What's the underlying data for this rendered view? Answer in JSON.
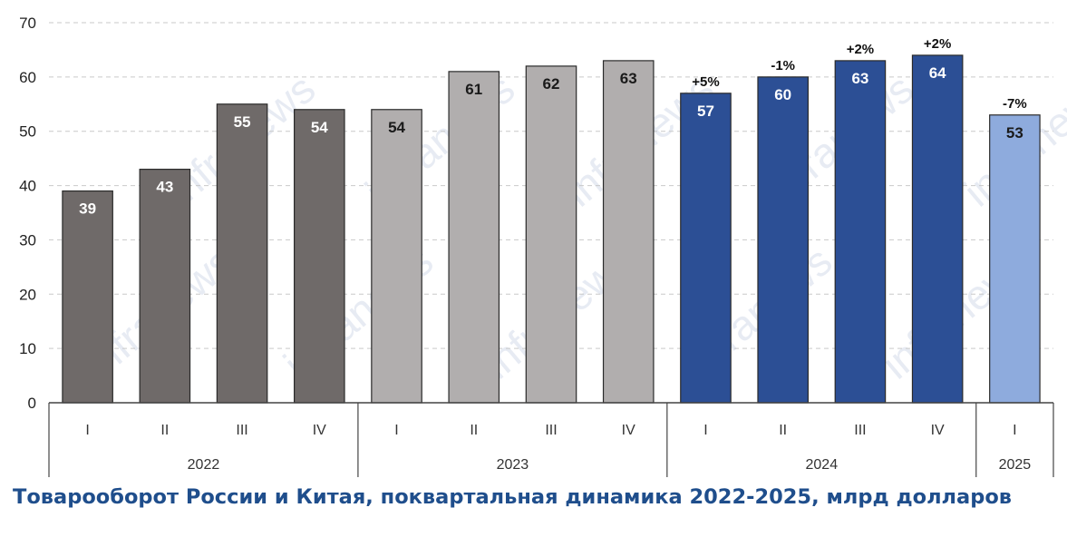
{
  "caption": "Товарооборот России и Китая, поквартальная динамика 2022-2025, млрд долларов",
  "watermark": "infranews",
  "chart_data": {
    "type": "bar",
    "title": "Товарооборот России и Китая, поквартальная динамика 2022-2025, млрд долларов",
    "ylim": [
      0,
      70
    ],
    "yticks": [
      0,
      10,
      20,
      30,
      40,
      50,
      60,
      70
    ],
    "grid": true,
    "groups": [
      {
        "label": "2022",
        "color": "#6f6a69",
        "label_color": "#ffffff",
        "bars": [
          {
            "quarter": "I",
            "value": 39,
            "label": "39",
            "change": ""
          },
          {
            "quarter": "II",
            "value": 43,
            "label": "43",
            "change": ""
          },
          {
            "quarter": "III",
            "value": 55,
            "label": "55",
            "change": ""
          },
          {
            "quarter": "IV",
            "value": 54,
            "label": "54",
            "change": ""
          }
        ]
      },
      {
        "label": "2023",
        "color": "#b1aeae",
        "label_color": "#1a1a1a",
        "bars": [
          {
            "quarter": "I",
            "value": 54,
            "label": "54",
            "change": ""
          },
          {
            "quarter": "II",
            "value": 61,
            "label": "61",
            "change": ""
          },
          {
            "quarter": "III",
            "value": 62,
            "label": "62",
            "change": ""
          },
          {
            "quarter": "IV",
            "value": 63,
            "label": "63",
            "change": ""
          }
        ]
      },
      {
        "label": "2024",
        "color": "#2c4f95",
        "label_color": "#ffffff",
        "bars": [
          {
            "quarter": "I",
            "value": 57,
            "label": "57",
            "change": "+5%"
          },
          {
            "quarter": "II",
            "value": 60,
            "label": "60",
            "change": "-1%"
          },
          {
            "quarter": "III",
            "value": 63,
            "label": "63",
            "change": "+2%"
          },
          {
            "quarter": "IV",
            "value": 64,
            "label": "64",
            "change": "+2%"
          }
        ]
      },
      {
        "label": "2025",
        "color": "#8eabdd",
        "label_color": "#1a1a1a",
        "bars": [
          {
            "quarter": "I",
            "value": 53,
            "label": "53",
            "change": "-7%"
          }
        ]
      }
    ]
  }
}
